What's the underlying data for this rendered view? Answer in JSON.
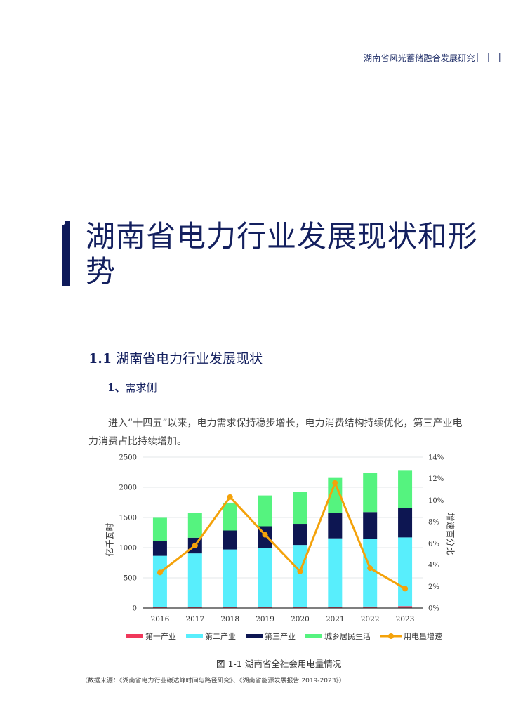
{
  "header": {
    "running_title": "湖南省风光蓄储融合发展研究",
    "page_marks": "| | |"
  },
  "chapter": {
    "number_bar": "1",
    "title": "湖南省电力行业发展现状和形势"
  },
  "section": {
    "number": "1.1",
    "title": "湖南省电力行业发展现状"
  },
  "subsection": {
    "number": "1、",
    "title": "需求侧"
  },
  "paragraph": "进入“十四五”以来，电力需求保持稳步增长，电力消费结构持续优化，第三产业电力消费占比持续增加。",
  "figure": {
    "caption": "图 1-1  湖南省全社会用电量情况",
    "source": "（数据来源：《湖南省电力行业碳达峰时间与路径研究》、《湖南省能源发展报告 2019-2023》）"
  },
  "chart_data": {
    "type": "bar",
    "stacked": true,
    "title": "湖南省全社会用电量情况",
    "categories": [
      "2016",
      "2017",
      "2018",
      "2019",
      "2020",
      "2021",
      "2022",
      "2023"
    ],
    "ylabel": "亿千瓦时",
    "ylabel_right": "增速百分比",
    "ylim": [
      0,
      2500
    ],
    "yticks": [
      "0",
      "500",
      "1000",
      "1500",
      "2000",
      "2500"
    ],
    "ylim_right": [
      0,
      14
    ],
    "yticks_right": [
      "0%",
      "2%",
      "4%",
      "6%",
      "8%",
      "10%",
      "12%",
      "14%"
    ],
    "grid": true,
    "legend_position": "bottom",
    "series": [
      {
        "name": "第一产业",
        "color": "#f0385a",
        "values": [
          15,
          16,
          15,
          15,
          16,
          18,
          25,
          32
        ]
      },
      {
        "name": "第二产业",
        "color": "#58eefc",
        "values": [
          850,
          889,
          955,
          985,
          1029,
          1137,
          1125,
          1138
        ]
      },
      {
        "name": "第三产业",
        "color": "#0d1652",
        "values": [
          245,
          260,
          315,
          355,
          350,
          420,
          440,
          485
        ]
      },
      {
        "name": "城乡居民生活",
        "color": "#55f37f",
        "values": [
          385,
          415,
          460,
          510,
          535,
          580,
          645,
          620
        ]
      },
      {
        "name": "用电量增速",
        "type": "line",
        "axis": "right",
        "color": "#f4a20a",
        "values": [
          3.3,
          5.8,
          10.3,
          6.8,
          3.4,
          11.6,
          3.7,
          1.8
        ]
      }
    ]
  }
}
